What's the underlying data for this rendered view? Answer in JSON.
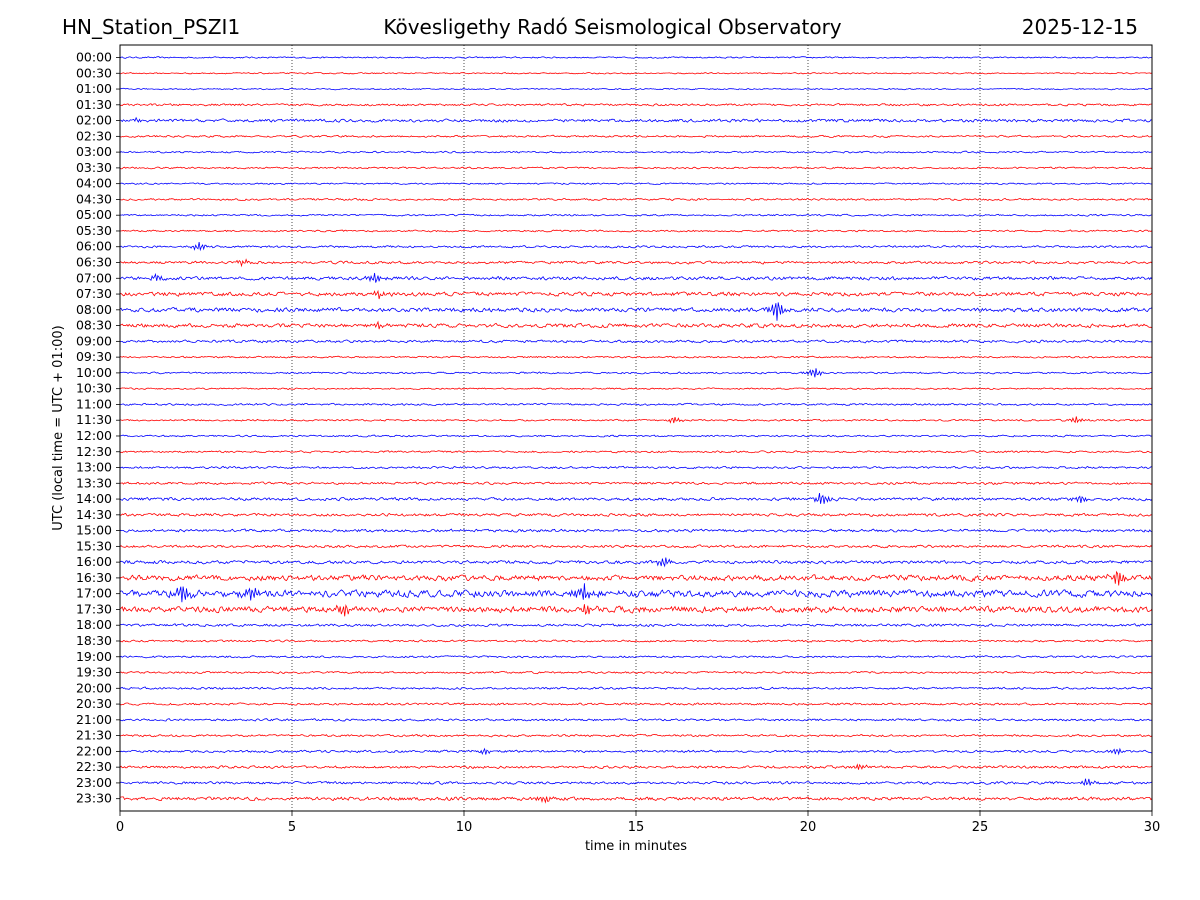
{
  "header": {
    "station": "HN_Station_PSZI1",
    "title": "Kövesligethy Radó Seismological Observatory",
    "date": "2025-12-15"
  },
  "chart_data": {
    "type": "line",
    "title": "Kövesligethy Radó Seismological Observatory",
    "xlabel": "time in minutes",
    "ylabel": "UTC (local time = UTC + 01:00)",
    "xlim": [
      0,
      30
    ],
    "xticks": [
      0,
      5,
      10,
      15,
      20,
      25,
      30
    ],
    "grid": "vertical dotted at each x tick",
    "trace_colors": [
      "#0000ff",
      "#ff0000"
    ],
    "rows": [
      "00:00",
      "00:30",
      "01:00",
      "01:30",
      "02:00",
      "02:30",
      "03:00",
      "03:30",
      "04:00",
      "04:30",
      "05:00",
      "05:30",
      "06:00",
      "06:30",
      "07:00",
      "07:30",
      "08:00",
      "08:30",
      "09:00",
      "09:30",
      "10:00",
      "10:30",
      "11:00",
      "11:30",
      "12:00",
      "12:30",
      "13:00",
      "13:30",
      "14:00",
      "14:30",
      "15:00",
      "15:30",
      "16:00",
      "16:30",
      "17:00",
      "17:30",
      "18:00",
      "18:30",
      "19:00",
      "19:30",
      "20:00",
      "20:30",
      "21:00",
      "21:30",
      "22:00",
      "22:30",
      "23:00",
      "23:30"
    ],
    "noise_level": [
      0.7,
      0.6,
      0.6,
      1.0,
      1.4,
      0.9,
      0.8,
      0.8,
      0.7,
      0.9,
      0.8,
      0.8,
      1.0,
      1.2,
      1.6,
      1.8,
      1.9,
      1.8,
      1.2,
      0.8,
      0.8,
      0.7,
      0.9,
      0.8,
      0.8,
      0.9,
      1.0,
      1.1,
      1.4,
      1.3,
      1.3,
      1.2,
      1.5,
      2.6,
      3.2,
      2.8,
      1.2,
      0.9,
      0.9,
      0.9,
      1.0,
      1.0,
      1.0,
      1.0,
      1.1,
      1.2,
      1.2,
      1.6
    ],
    "events": [
      {
        "row": "02:00",
        "minute": 0.5,
        "amplitude": 3
      },
      {
        "row": "06:00",
        "minute": 2.3,
        "amplitude": 5
      },
      {
        "row": "06:30",
        "minute": 3.6,
        "amplitude": 4
      },
      {
        "row": "07:00",
        "minute": 7.4,
        "amplitude": 6
      },
      {
        "row": "07:00",
        "minute": 1.1,
        "amplitude": 4
      },
      {
        "row": "07:30",
        "minute": 7.5,
        "amplitude": 5
      },
      {
        "row": "08:00",
        "minute": 19.1,
        "amplitude": 12
      },
      {
        "row": "08:30",
        "minute": 7.5,
        "amplitude": 4
      },
      {
        "row": "10:00",
        "minute": 20.2,
        "amplitude": 6
      },
      {
        "row": "11:30",
        "minute": 16.1,
        "amplitude": 4
      },
      {
        "row": "11:30",
        "minute": 27.8,
        "amplitude": 4
      },
      {
        "row": "14:00",
        "minute": 20.4,
        "amplitude": 8
      },
      {
        "row": "14:00",
        "minute": 27.9,
        "amplitude": 5
      },
      {
        "row": "16:00",
        "minute": 15.8,
        "amplitude": 6
      },
      {
        "row": "16:30",
        "minute": 29.0,
        "amplitude": 10
      },
      {
        "row": "17:00",
        "minute": 1.8,
        "amplitude": 10
      },
      {
        "row": "17:00",
        "minute": 3.8,
        "amplitude": 9
      },
      {
        "row": "17:00",
        "minute": 13.5,
        "amplitude": 9
      },
      {
        "row": "17:30",
        "minute": 6.5,
        "amplitude": 8
      },
      {
        "row": "17:30",
        "minute": 13.6,
        "amplitude": 7
      },
      {
        "row": "22:00",
        "minute": 10.6,
        "amplitude": 4
      },
      {
        "row": "22:00",
        "minute": 29.0,
        "amplitude": 4
      },
      {
        "row": "22:30",
        "minute": 21.5,
        "amplitude": 4
      },
      {
        "row": "23:00",
        "minute": 28.1,
        "amplitude": 5
      },
      {
        "row": "23:30",
        "minute": 12.4,
        "amplitude": 4
      }
    ]
  }
}
